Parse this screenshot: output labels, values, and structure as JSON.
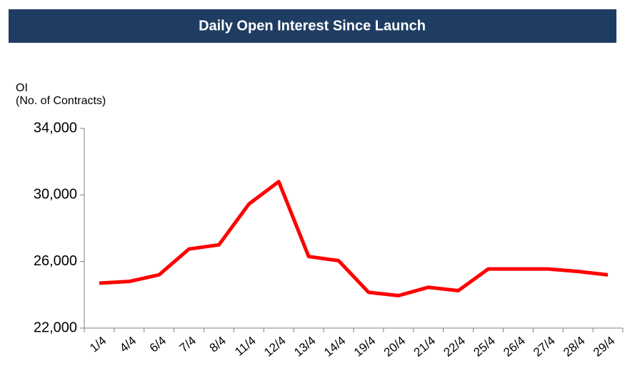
{
  "chart_data": {
    "type": "line",
    "title": "Daily Open Interest Since Launch",
    "ylabel": [
      "OI",
      "(No. of Contracts)"
    ],
    "categories": [
      "1/4",
      "4/4",
      "6/4",
      "7/4",
      "8/4",
      "11/4",
      "12/4",
      "13/4",
      "14/4",
      "19/4",
      "20/4",
      "21/4",
      "22/4",
      "25/4",
      "26/4",
      "27/4",
      "28/4",
      "29/4"
    ],
    "series": [
      {
        "name": "OI",
        "color": "#ff0000",
        "values": [
          24700,
          24800,
          25200,
          26750,
          27000,
          29450,
          30800,
          26300,
          26050,
          24150,
          23950,
          24450,
          24250,
          25550,
          25550,
          25550,
          25400,
          25200
        ]
      }
    ],
    "ylim": [
      22000,
      34000
    ],
    "yticks": [
      {
        "value": 22000,
        "label": "22,000"
      },
      {
        "value": 26000,
        "label": "26,000"
      },
      {
        "value": 30000,
        "label": "30,000"
      },
      {
        "value": 34000,
        "label": "34,000"
      }
    ],
    "grid": false
  }
}
